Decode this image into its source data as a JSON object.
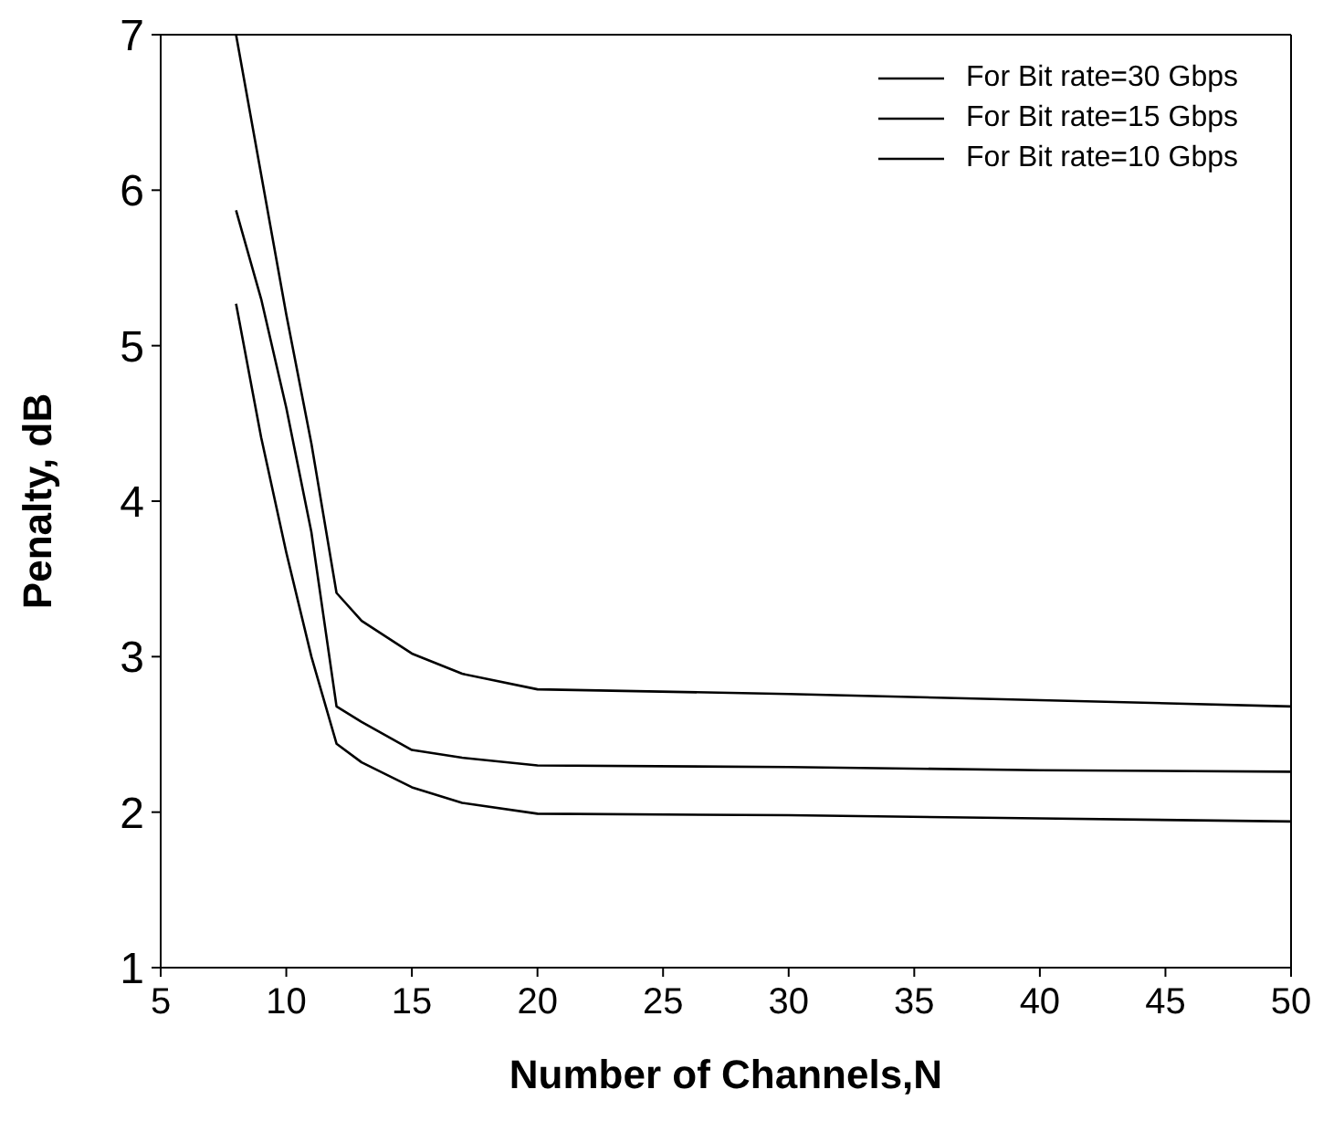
{
  "chart_data": {
    "type": "line",
    "xlabel": "Number of Channels,N",
    "ylabel": "Penalty, dB",
    "xlim": [
      5,
      50
    ],
    "xticks": [
      5,
      10,
      15,
      20,
      25,
      30,
      35,
      40,
      45,
      50
    ],
    "ylim": [
      1,
      7
    ],
    "yticks": [
      1,
      2,
      3,
      4,
      5,
      6,
      7
    ],
    "grid": false,
    "legend": "top right",
    "marker": "none",
    "line_style": "solid",
    "series": [
      {
        "name": "For Bit rate=30 Gbps",
        "color": "#000000",
        "x": [
          8,
          10,
          11,
          12,
          13,
          15,
          17,
          20,
          30,
          40,
          50
        ],
        "values": [
          7.0,
          5.2,
          4.37,
          3.41,
          3.23,
          3.02,
          2.89,
          2.79,
          2.76,
          2.72,
          2.68
        ]
      },
      {
        "name": "For Bit rate=15 Gbps",
        "color": "#000000",
        "x": [
          8,
          9,
          10,
          11,
          12,
          13,
          15,
          17,
          20,
          30,
          40,
          50
        ],
        "values": [
          5.87,
          5.3,
          4.6,
          3.8,
          2.68,
          2.58,
          2.4,
          2.35,
          2.3,
          2.29,
          2.27,
          2.26
        ]
      },
      {
        "name": "For Bit rate=10 Gbps",
        "color": "#000000",
        "x": [
          8,
          9,
          10,
          11,
          12,
          13,
          15,
          17,
          20,
          30,
          40,
          50
        ],
        "values": [
          5.27,
          4.41,
          3.67,
          3.0,
          2.44,
          2.32,
          2.16,
          2.06,
          1.99,
          1.98,
          1.96,
          1.94
        ]
      }
    ]
  }
}
